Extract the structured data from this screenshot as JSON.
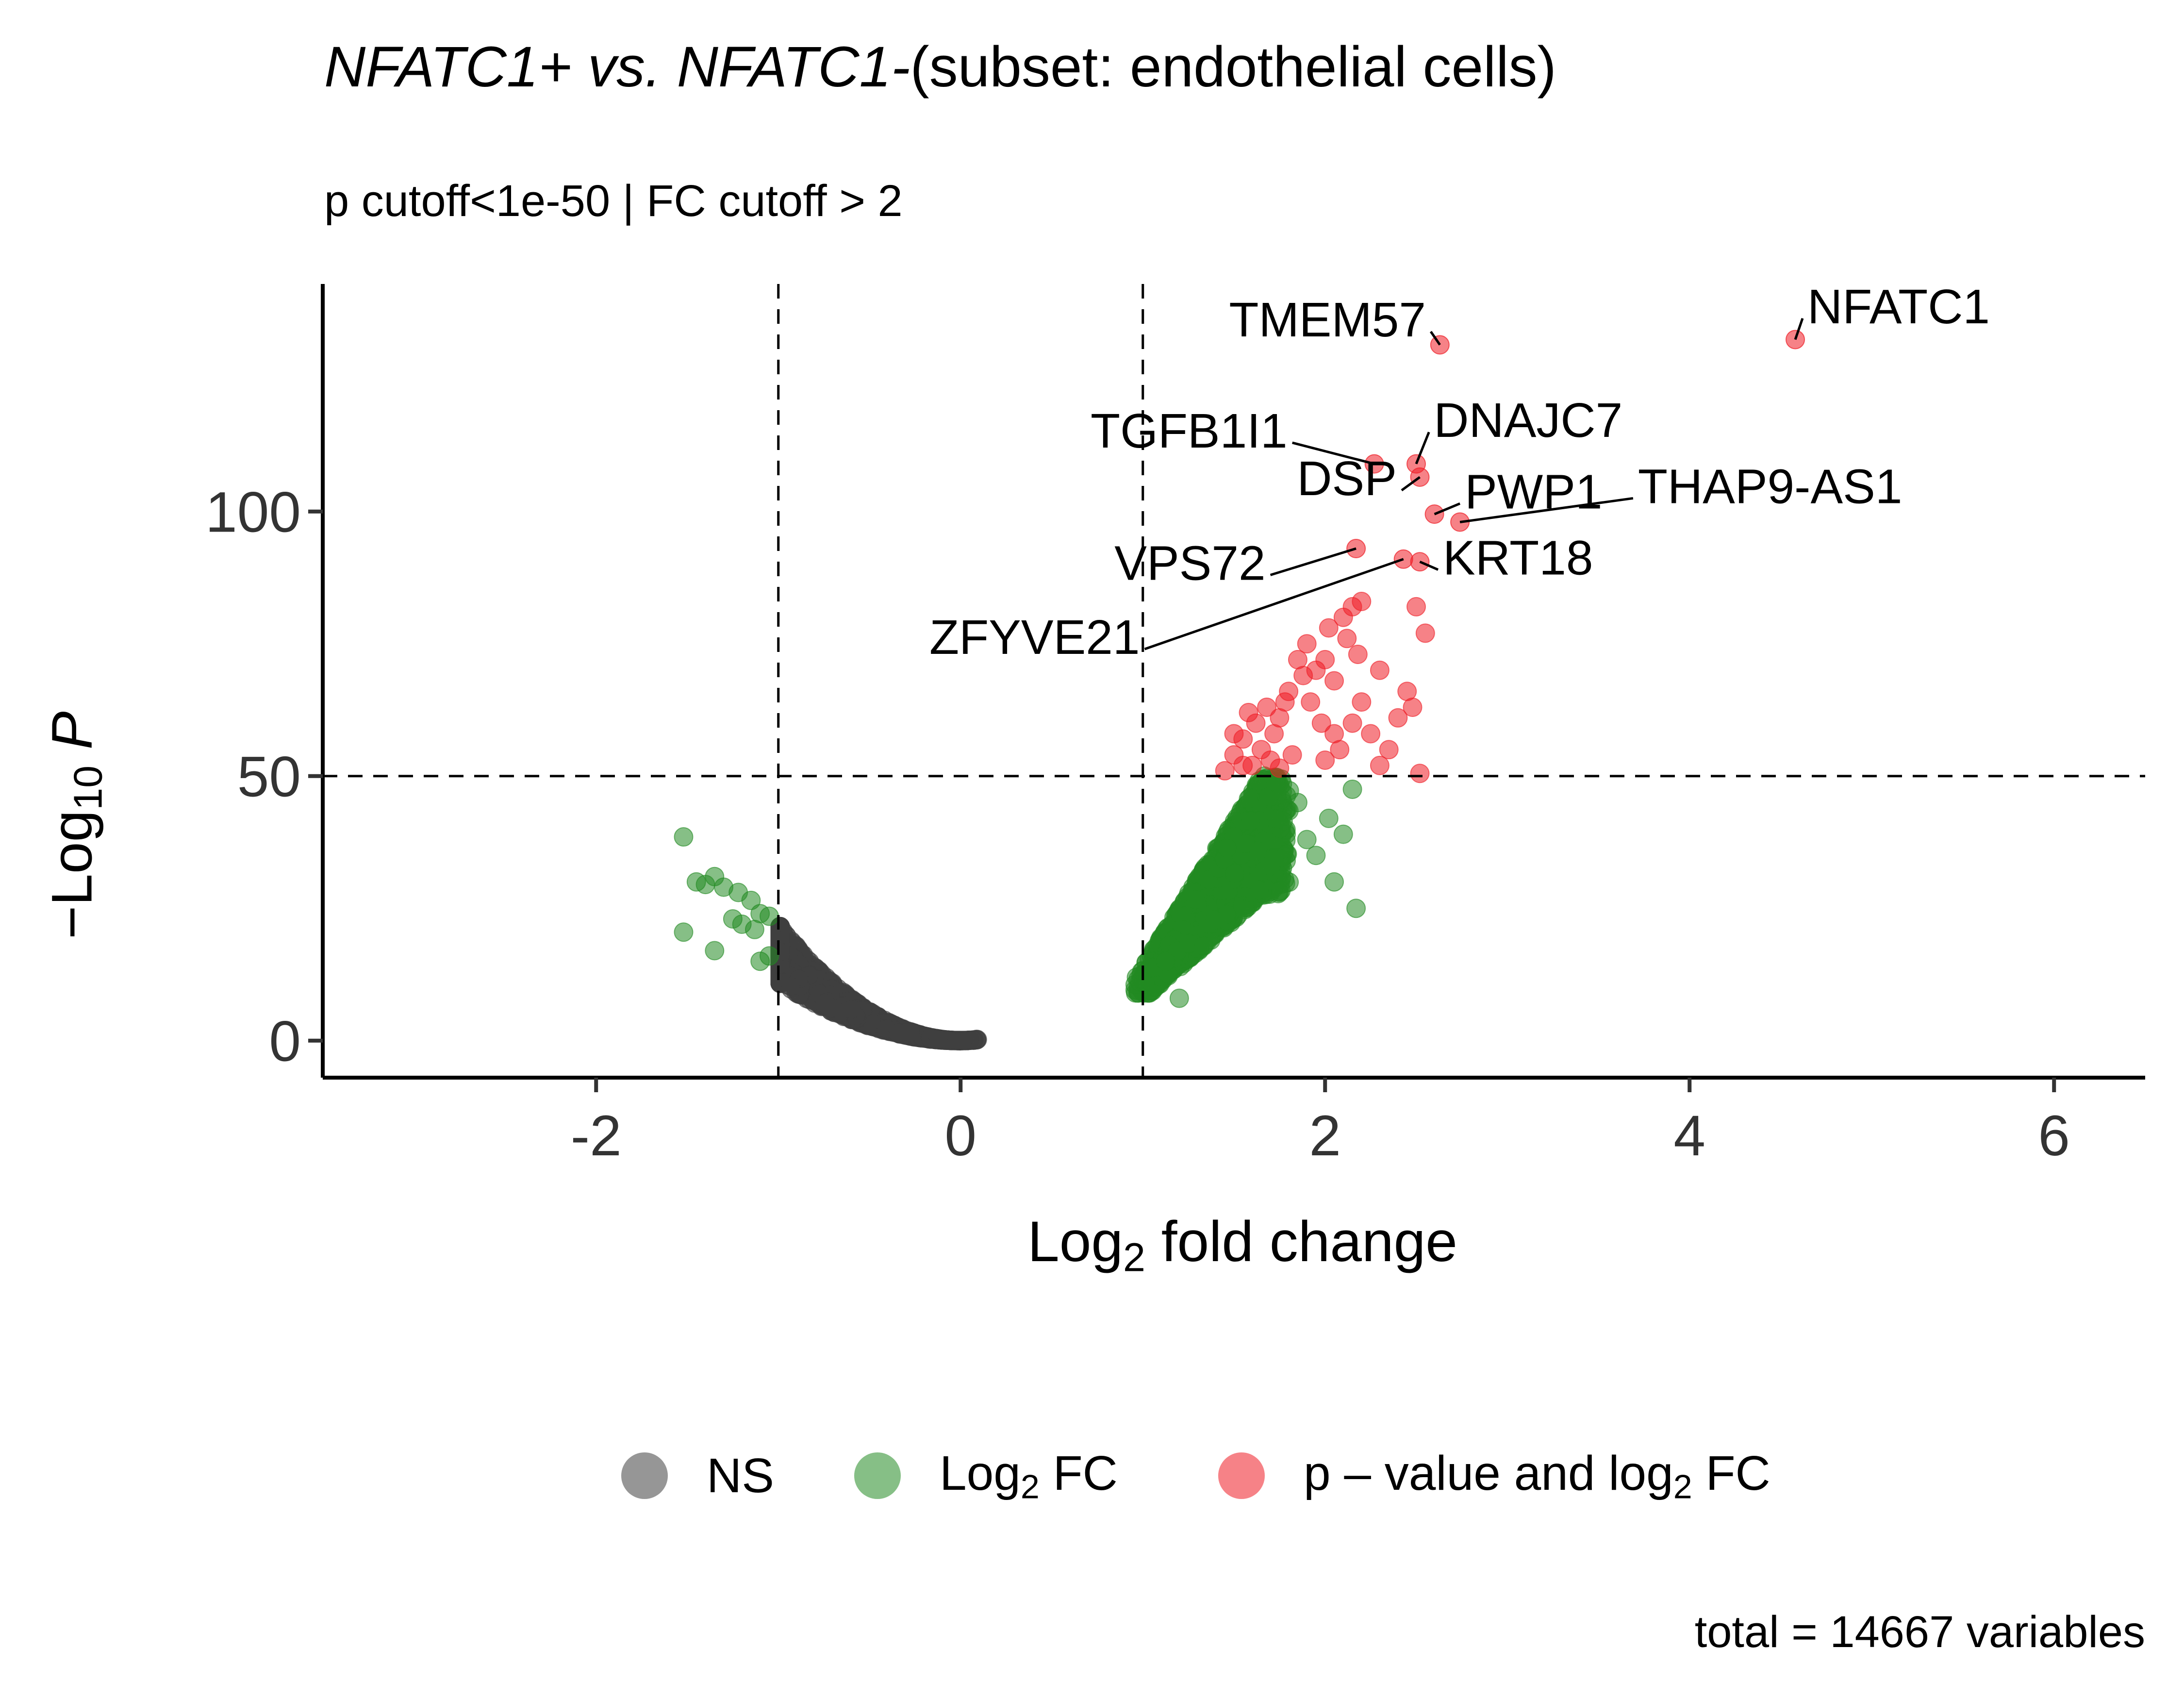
{
  "chart_data": {
    "type": "scatter",
    "title_parts": [
      "NFATC1+ vs. NFATC1-",
      "(subset: endothelial cells)"
    ],
    "subtitle": "p cutoff<1e-50 | FC cutoff > 2",
    "xlabel": {
      "base": "Log",
      "sub": "2",
      "rest": " fold change"
    },
    "ylabel": {
      "prefix": "−Log",
      "sub": "10",
      "var": "P"
    },
    "xlim": [
      -3.5,
      6.5
    ],
    "ylim": [
      -7,
      143
    ],
    "xticks": [
      -2,
      0,
      2,
      4,
      6
    ],
    "yticks": [
      0,
      50,
      100
    ],
    "xtick_labels": [
      "-2",
      "0",
      "2",
      "4",
      "6"
    ],
    "ytick_labels": [
      "0",
      "50",
      "100"
    ],
    "vlines": [
      -1,
      1
    ],
    "hline": 50,
    "caption": "total = 14667 variables",
    "colors": {
      "NS": "#404040",
      "FC": "#228b22",
      "P_FC": "#ee1c25"
    },
    "legend": [
      {
        "key": "NS",
        "label_a": "NS",
        "label_sub": "",
        "label_b": ""
      },
      {
        "key": "FC",
        "label_a": "Log",
        "label_sub": "2",
        "label_b": " FC"
      },
      {
        "key": "P_FC",
        "label_a": "p – value and log",
        "label_sub": "2",
        "label_b": " FC"
      }
    ],
    "highlighted": [
      {
        "gene": "NFATC1",
        "x": 4.58,
        "y": 132.5,
        "lx": 4.62,
        "ly": 136.5
      },
      {
        "gene": "TMEM57",
        "x": 2.63,
        "y": 131.5,
        "lx": 2.58,
        "ly": 134
      },
      {
        "gene": "DNAJC7",
        "x": 2.5,
        "y": 109,
        "lx": 2.57,
        "ly": 115
      },
      {
        "gene": "TGFB1I1",
        "x": 2.27,
        "y": 109,
        "lx": 1.82,
        "ly": 113
      },
      {
        "gene": "PWP1",
        "x": 2.6,
        "y": 99.5,
        "lx": 2.74,
        "ly": 101.5
      },
      {
        "gene": "DSP",
        "x": 2.52,
        "y": 106.5,
        "lx": 2.42,
        "ly": 104
      },
      {
        "gene": "THAP9-AS1",
        "x": 2.74,
        "y": 98,
        "lx": 3.69,
        "ly": 102.5
      },
      {
        "gene": "KRT18",
        "x": 2.52,
        "y": 90.5,
        "lx": 2.62,
        "ly": 89
      },
      {
        "gene": "VPS72",
        "x": 2.17,
        "y": 93,
        "lx": 1.7,
        "ly": 88
      },
      {
        "gene": "ZFYVE21",
        "x": 2.43,
        "y": 91,
        "lx": 1.01,
        "ly": 74
      }
    ]
  }
}
